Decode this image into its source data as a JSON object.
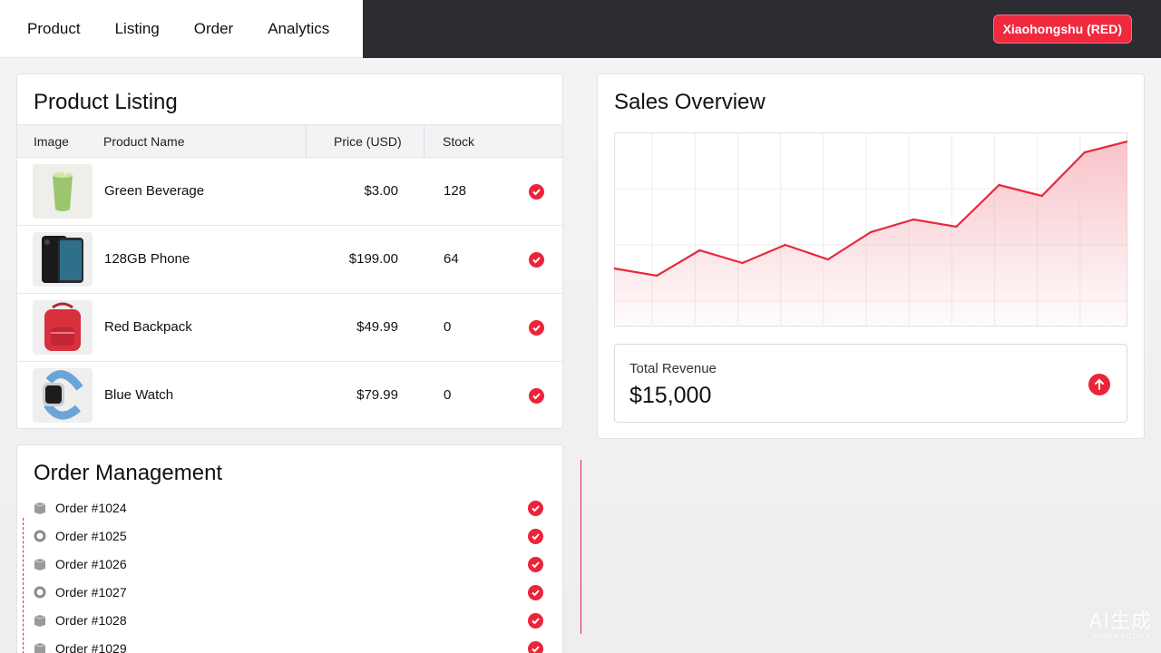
{
  "nav": {
    "items": [
      "Product",
      "Listing",
      "Order",
      "Analytics"
    ],
    "brand": "Xiaohongshu (RED)"
  },
  "listing": {
    "title": "Product Listing",
    "columns": [
      "Image",
      "Product Name",
      "Price (USD)",
      "Stock"
    ],
    "rows": [
      {
        "image": "green-beverage-photo",
        "name": "Green Beverage",
        "price": "$3.00",
        "stock": "128",
        "status_icon": "check-circle-icon"
      },
      {
        "image": "phone-photo",
        "name": "128GB Phone",
        "price": "$199.00",
        "stock": "64",
        "status_icon": "check-circle-icon"
      },
      {
        "image": "red-backpack-photo",
        "name": "Red Backpack",
        "price": "$49.99",
        "stock": "0",
        "status_icon": "check-circle-icon"
      },
      {
        "image": "blue-watch-photo",
        "name": "Blue Watch",
        "price": "$79.99",
        "stock": "0",
        "status_icon": "check-circle-icon"
      }
    ]
  },
  "sales": {
    "title": "Sales Overview",
    "revenue_label": "Total Revenue",
    "revenue_value": "$15,000",
    "revenue_icon": "arrow-up-icon",
    "chart_data": {
      "type": "area",
      "title": "",
      "xlabel": "",
      "ylabel": "",
      "x": [
        1,
        2,
        3,
        4,
        5,
        6,
        7,
        8,
        9,
        10,
        11,
        12,
        13
      ],
      "values": [
        30,
        26,
        40,
        33,
        43,
        35,
        50,
        57,
        53,
        76,
        70,
        94,
        100
      ],
      "ylim": [
        0,
        100
      ],
      "grid": true,
      "line_color": "#e8283c",
      "fill_color": "#f7b9c0"
    }
  },
  "orders": {
    "title": "Order Management",
    "items": [
      {
        "label": "Order #1024",
        "icon": "package-icon"
      },
      {
        "label": "Order #1025",
        "icon": "ring-icon"
      },
      {
        "label": "Order #1026",
        "icon": "package-icon"
      },
      {
        "label": "Order #1027",
        "icon": "ring-icon"
      },
      {
        "label": "Order #1028",
        "icon": "package-icon"
      },
      {
        "label": "Order #1029",
        "icon": "package-icon"
      }
    ]
  },
  "colors": {
    "accent": "#ec2339",
    "topbar": "#2b2d33"
  },
  "watermark": {
    "main": "AI生成",
    "sub": "WORKBUDDY"
  }
}
